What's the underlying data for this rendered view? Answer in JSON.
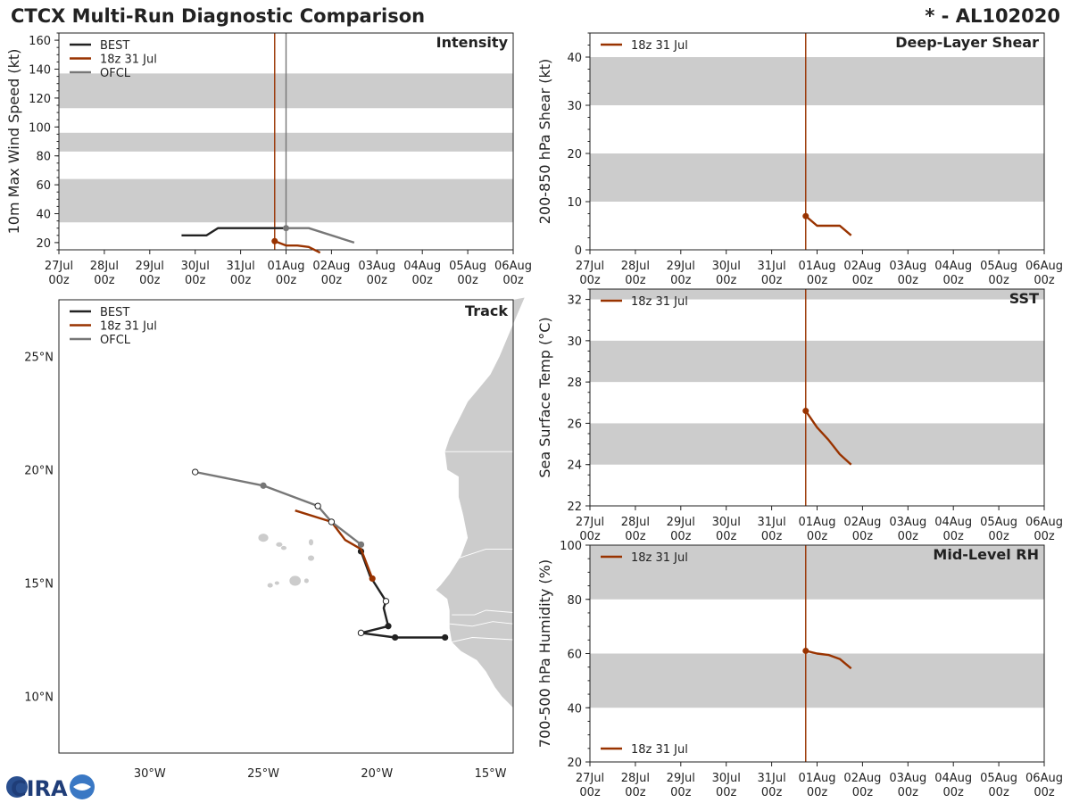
{
  "header": {
    "title": "CTCX Multi-Run Diagnostic Comparison",
    "storm": "* - AL102020"
  },
  "logo": {
    "text": "CIRA"
  },
  "colors": {
    "best": "#222222",
    "run": "#993300",
    "ofcl": "#777777",
    "band": "#cccccc",
    "land": "#cccccc"
  },
  "time_axis": {
    "ticks": [
      "27Jul\n00z",
      "28Jul\n00z",
      "29Jul\n00z",
      "30Jul\n00z",
      "31Jul\n00z",
      "01Aug\n00z",
      "02Aug\n00z",
      "03Aug\n00z",
      "04Aug\n00z",
      "05Aug\n00z",
      "06Aug\n00z"
    ]
  },
  "chart_data": [
    {
      "id": "intensity",
      "type": "line",
      "title": "Intensity",
      "ylabel": "10m Max Wind Speed (kt)",
      "xlim": [
        0,
        10
      ],
      "ylim": [
        15,
        165
      ],
      "yticks": [
        20,
        40,
        60,
        80,
        100,
        120,
        140,
        160
      ],
      "bands": [
        [
          34,
          64
        ],
        [
          83,
          96
        ],
        [
          113,
          137
        ]
      ],
      "vlines": [
        {
          "x": 4.75,
          "color": "run"
        },
        {
          "x": 5.0,
          "color": "ofcl"
        }
      ],
      "legend": [
        "BEST",
        "18z 31 Jul",
        "OFCL"
      ],
      "series": [
        {
          "name": "BEST",
          "color": "best",
          "x": [
            2.7,
            3.25,
            3.5,
            4.75,
            5.0
          ],
          "y": [
            25,
            25,
            30,
            30,
            30
          ],
          "markers": []
        },
        {
          "name": "18z 31 Jul",
          "color": "run",
          "x": [
            4.75,
            5.0,
            5.25,
            5.5,
            5.75
          ],
          "y": [
            21,
            18,
            18,
            17,
            13
          ],
          "markers": [
            0
          ]
        },
        {
          "name": "OFCL",
          "color": "ofcl",
          "x": [
            5.0,
            5.5,
            6.5
          ],
          "y": [
            30,
            30,
            20
          ],
          "markers": [
            0
          ]
        }
      ]
    },
    {
      "id": "shear",
      "type": "line",
      "title": "Deep-Layer Shear",
      "ylabel": "200-850 hPa Shear (kt)",
      "xlim": [
        0,
        10
      ],
      "ylim": [
        0,
        45
      ],
      "yticks": [
        0,
        10,
        20,
        30,
        40
      ],
      "bands": [
        [
          10,
          20
        ],
        [
          30,
          40
        ]
      ],
      "vlines": [
        {
          "x": 4.75,
          "color": "run"
        }
      ],
      "legend": [
        "18z 31 Jul"
      ],
      "series": [
        {
          "name": "18z 31 Jul",
          "color": "run",
          "x": [
            4.75,
            5.0,
            5.5,
            5.75
          ],
          "y": [
            7,
            5,
            5,
            3
          ],
          "markers": [
            0
          ]
        }
      ]
    },
    {
      "id": "sst",
      "type": "line",
      "title": "SST",
      "ylabel": "Sea Surface Temp (°C)",
      "xlim": [
        0,
        10
      ],
      "ylim": [
        22,
        32.5
      ],
      "yticks": [
        22,
        24,
        26,
        28,
        30,
        32
      ],
      "bands": [
        [
          24,
          26
        ],
        [
          28,
          30
        ],
        [
          32,
          34
        ]
      ],
      "vlines": [
        {
          "x": 4.75,
          "color": "run"
        }
      ],
      "legend": [
        "18z 31 Jul"
      ],
      "series": [
        {
          "name": "18z 31 Jul",
          "color": "run",
          "x": [
            4.75,
            5.0,
            5.25,
            5.5,
            5.75
          ],
          "y": [
            26.6,
            25.8,
            25.2,
            24.5,
            24.0
          ],
          "markers": [
            0
          ]
        }
      ]
    },
    {
      "id": "rh",
      "type": "line",
      "title": "Mid-Level RH",
      "ylabel": "700-500 hPa Humidity (%)",
      "xlim": [
        0,
        10
      ],
      "ylim": [
        20,
        100
      ],
      "yticks": [
        20,
        40,
        60,
        80,
        100
      ],
      "bands": [
        [
          40,
          60
        ],
        [
          80,
          100
        ]
      ],
      "vlines": [
        {
          "x": 4.75,
          "color": "run"
        }
      ],
      "legend": [
        "18z 31 Jul"
      ],
      "series": [
        {
          "name": "18z 31 Jul",
          "color": "run",
          "x": [
            4.75,
            5.0,
            5.25,
            5.5,
            5.75
          ],
          "y": [
            61,
            60,
            59.5,
            58,
            54.5
          ],
          "markers": [
            0
          ]
        }
      ]
    },
    {
      "id": "track",
      "type": "scatter",
      "title": "Track",
      "xlim": [
        -34,
        -14
      ],
      "ylim": [
        7.5,
        27.5
      ],
      "xticks": [
        -30,
        -25,
        -20,
        -15
      ],
      "xticklabels": [
        "30°W",
        "25°W",
        "20°W",
        "15°W"
      ],
      "yticks": [
        10,
        15,
        20,
        25
      ],
      "yticklabels": [
        "10°N",
        "15°N",
        "20°N",
        "25°N"
      ],
      "legend": [
        "BEST",
        "18z 31 Jul",
        "OFCL"
      ],
      "series": [
        {
          "name": "BEST",
          "color": "best",
          "lon": [
            -17.0,
            -19.2,
            -20.7,
            -19.5,
            -19.7,
            -19.6,
            -20.3,
            -20.7
          ],
          "lat": [
            12.6,
            12.6,
            12.8,
            13.1,
            13.9,
            14.2,
            15.3,
            16.4
          ],
          "filled": [
            0,
            1,
            3,
            7
          ],
          "hollow": [
            2,
            5
          ]
        },
        {
          "name": "18z 31 Jul",
          "color": "run",
          "lon": [
            -23.6,
            -22.0,
            -21.4,
            -20.7,
            -20.2
          ],
          "lat": [
            18.2,
            17.7,
            16.9,
            16.5,
            15.2
          ],
          "filled": [
            4
          ],
          "hollow": []
        },
        {
          "name": "OFCL",
          "color": "ofcl",
          "lon": [
            -20.7,
            -22.0,
            -22.6,
            -25.0,
            -28.0
          ],
          "lat": [
            16.7,
            17.7,
            18.4,
            19.3,
            19.9
          ],
          "filled": [
            0,
            3
          ],
          "hollow": [
            1,
            2,
            4
          ]
        }
      ]
    }
  ]
}
